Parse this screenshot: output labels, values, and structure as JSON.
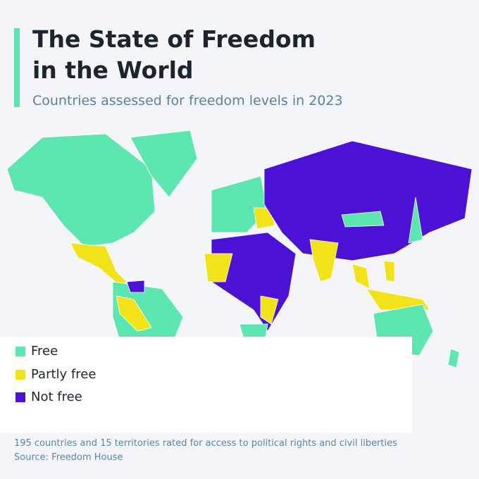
{
  "header": {
    "title": "The State of Freedom in the World",
    "subtitle": "Countries assessed for freedom levels in 2023"
  },
  "legend": {
    "items": [
      {
        "label": "Free",
        "color": "#5ee6b0"
      },
      {
        "label": "Partly free",
        "color": "#f2e21a"
      },
      {
        "label": "Not free",
        "color": "#4b12d6"
      }
    ]
  },
  "footer": {
    "note": "195 countries and 15 territories rated for access to political rights and civil liberties",
    "source": "Source: Freedom House"
  }
}
